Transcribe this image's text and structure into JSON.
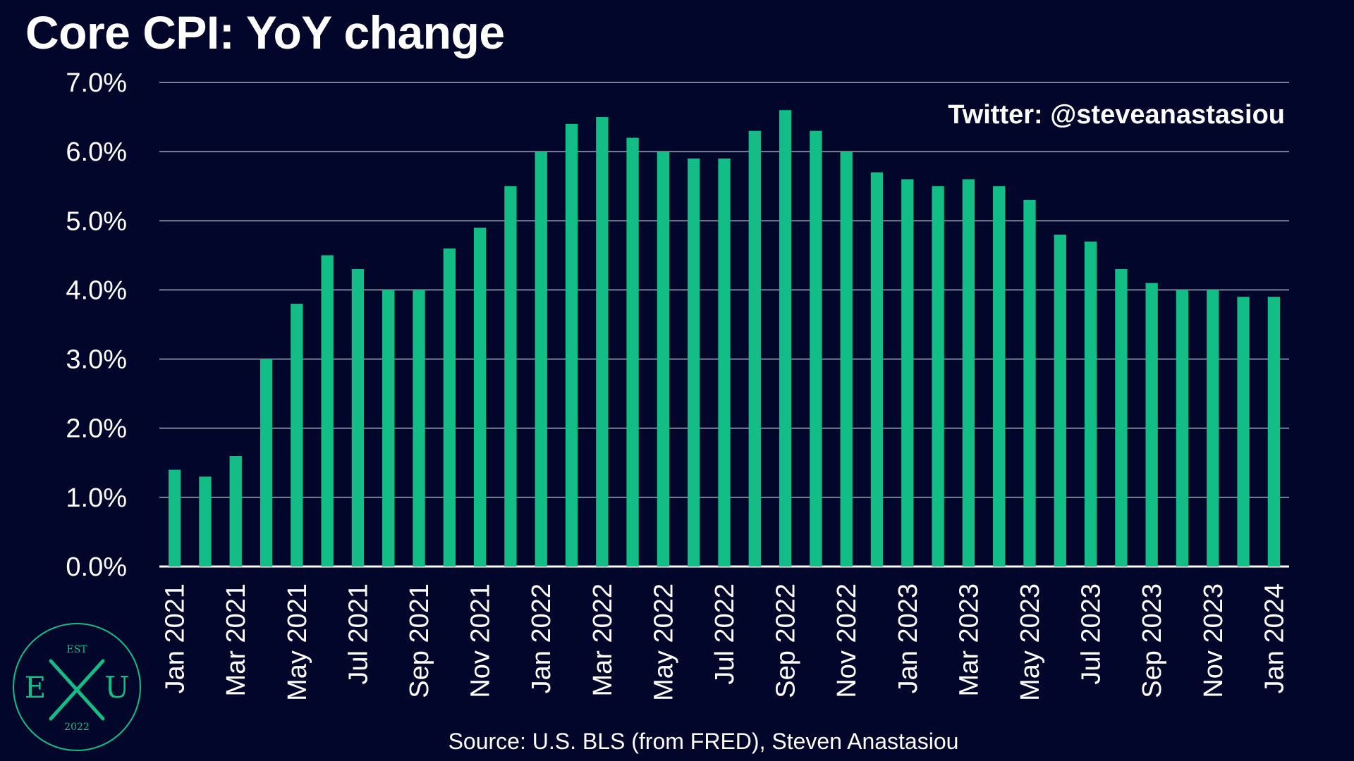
{
  "chart_data": {
    "type": "bar",
    "title": "Core CPI: YoY change",
    "xlabel": "",
    "ylabel": "",
    "categories": [
      "Jan 2021",
      "Feb 2021",
      "Mar 2021",
      "Apr 2021",
      "May 2021",
      "Jun 2021",
      "Jul 2021",
      "Aug 2021",
      "Sep 2021",
      "Oct 2021",
      "Nov 2021",
      "Dec 2021",
      "Jan 2022",
      "Feb 2022",
      "Mar 2022",
      "Apr 2022",
      "May 2022",
      "Jun 2022",
      "Jul 2022",
      "Aug 2022",
      "Sep 2022",
      "Oct 2022",
      "Nov 2022",
      "Dec 2022",
      "Jan 2023",
      "Feb 2023",
      "Mar 2023",
      "Apr 2023",
      "May 2023",
      "Jun 2023",
      "Jul 2023",
      "Aug 2023",
      "Sep 2023",
      "Oct 2023",
      "Nov 2023",
      "Dec 2023",
      "Jan 2024"
    ],
    "tick_labels": [
      "Jan 2021",
      "Mar 2021",
      "May 2021",
      "Jul 2021",
      "Sep 2021",
      "Nov 2021",
      "Jan 2022",
      "Mar 2022",
      "May 2022",
      "Jul 2022",
      "Sep 2022",
      "Nov 2022",
      "Jan 2023",
      "Mar 2023",
      "May 2023",
      "Jul 2023",
      "Sep 2023",
      "Nov 2023",
      "Jan 2024"
    ],
    "series": [
      {
        "values": [
          1.4,
          1.3,
          1.6,
          3.0,
          3.8,
          4.5,
          4.3,
          4.0,
          4.0,
          4.6,
          4.9,
          5.5,
          6.0,
          6.4,
          6.5,
          6.2,
          6.0,
          5.9,
          5.9,
          6.3,
          6.6,
          6.3,
          6.0,
          5.7,
          5.6,
          5.5,
          5.6,
          5.5,
          5.3,
          4.8,
          4.7,
          4.3,
          4.1,
          4.0,
          4.0,
          3.9,
          3.9
        ]
      }
    ],
    "ylim": [
      0,
      7
    ],
    "yticks": [
      "0.0%",
      "1.0%",
      "2.0%",
      "3.0%",
      "4.0%",
      "5.0%",
      "6.0%",
      "7.0%"
    ],
    "grid": true,
    "legend": "none",
    "colors": {
      "background": "#02062a",
      "bar": "#12bd86",
      "grid": "#7d8096",
      "text": "#ffffff"
    }
  },
  "annotations": {
    "credit": "Twitter: @steveanastasiou",
    "source": "Source: U.S. BLS (from FRED), Steven Anastasiou"
  },
  "logo": {
    "top": "EST",
    "left": "E",
    "right": "U",
    "bottom": "2022"
  }
}
